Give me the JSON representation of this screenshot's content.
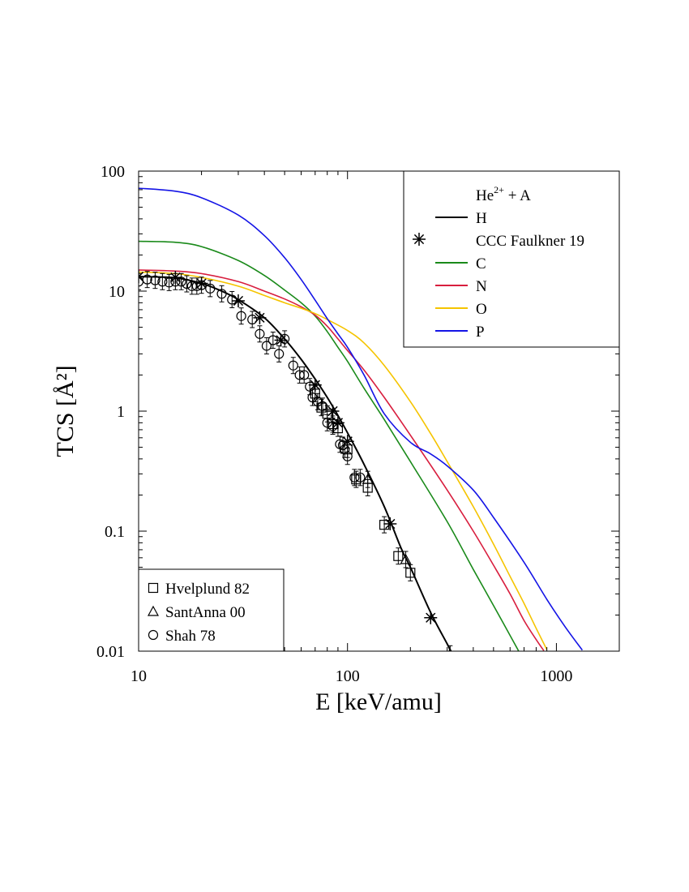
{
  "chart_data": {
    "type": "line",
    "title": "",
    "xlabel": "E [keV/amu]",
    "ylabel": "TCS [Å²]",
    "xscale": "log",
    "yscale": "log",
    "xlim": [
      10,
      2000
    ],
    "ylim": [
      0.01,
      100
    ],
    "xticks": [
      10,
      100,
      1000
    ],
    "xtick_labels": [
      "10",
      "100",
      "1000"
    ],
    "yticks": [
      0.01,
      0.1,
      1,
      10,
      100
    ],
    "ytick_labels": [
      "0.01",
      "0.1",
      "1",
      "10",
      "100"
    ],
    "grid": false,
    "legend_position": "top-right",
    "legend_title": "He2+ + A",
    "legend_title_base": "He",
    "legend_title_sup": "2+",
    "legend_title_rest": " + A",
    "data_legend_position": "bottom-left",
    "series": [
      {
        "name": "H",
        "kind": "line",
        "color": "#000000",
        "x": [
          10,
          15,
          20,
          25,
          30,
          40,
          50,
          60,
          70,
          80,
          90,
          100,
          120,
          150,
          180,
          200,
          250,
          300,
          310
        ],
        "y": [
          13.2,
          12.9,
          11.6,
          10.0,
          8.5,
          6.0,
          4.0,
          2.7,
          1.85,
          1.3,
          0.92,
          0.66,
          0.36,
          0.16,
          0.073,
          0.05,
          0.021,
          0.0115,
          0.0102
        ]
      },
      {
        "name": "CCC Faulkner 19",
        "kind": "marker",
        "marker": "star",
        "color": "#000000",
        "x": [
          10,
          15,
          20,
          30,
          38,
          48,
          70,
          85,
          90,
          100,
          160,
          250
        ],
        "y": [
          13.2,
          13.0,
          11.6,
          8.3,
          6.0,
          3.9,
          1.65,
          1.0,
          0.8,
          0.56,
          0.115,
          0.019
        ]
      },
      {
        "name": "C",
        "kind": "line",
        "color": "#1a8a1a",
        "x": [
          10,
          15,
          20,
          30,
          40,
          50,
          60,
          70,
          80,
          90,
          100,
          120,
          150,
          200,
          300,
          400,
          500,
          650,
          660
        ],
        "y": [
          26,
          25.5,
          23.5,
          18,
          13.5,
          10.2,
          8.0,
          6.2,
          4.6,
          3.4,
          2.6,
          1.55,
          0.85,
          0.38,
          0.12,
          0.048,
          0.024,
          0.0105,
          0.0098
        ]
      },
      {
        "name": "N",
        "kind": "line",
        "color": "#d81e3e",
        "x": [
          10,
          15,
          20,
          30,
          40,
          50,
          60,
          70,
          80,
          90,
          100,
          120,
          150,
          200,
          300,
          400,
          500,
          600,
          700,
          800,
          870
        ],
        "y": [
          15,
          14.7,
          14,
          12,
          10,
          8.6,
          7.4,
          6.3,
          5.1,
          4.0,
          3.2,
          2.2,
          1.3,
          0.63,
          0.22,
          0.1,
          0.052,
          0.03,
          0.018,
          0.0125,
          0.0101
        ]
      },
      {
        "name": "O",
        "kind": "line",
        "color": "#f5c400",
        "x": [
          10,
          15,
          20,
          30,
          40,
          50,
          60,
          70,
          80,
          100,
          120,
          150,
          200,
          250,
          300,
          400,
          500,
          600,
          700,
          800,
          900
        ],
        "y": [
          14.4,
          14.0,
          13.0,
          11.0,
          9.2,
          8.0,
          7.2,
          6.5,
          5.8,
          4.7,
          3.7,
          2.4,
          1.2,
          0.65,
          0.38,
          0.16,
          0.078,
          0.042,
          0.025,
          0.0155,
          0.0103
        ]
      },
      {
        "name": "P",
        "kind": "line",
        "color": "#1414e6",
        "x": [
          10,
          15,
          20,
          30,
          40,
          50,
          60,
          70,
          80,
          90,
          100,
          120,
          150,
          200,
          250,
          300,
          400,
          500,
          700,
          900,
          1100,
          1330
        ],
        "y": [
          72,
          68,
          60,
          43,
          29,
          19,
          12.5,
          8.4,
          5.9,
          4.4,
          3.4,
          2.0,
          0.95,
          0.55,
          0.44,
          0.35,
          0.22,
          0.13,
          0.055,
          0.027,
          0.016,
          0.0102
        ]
      },
      {
        "name": "Hvelplund 82",
        "kind": "marker",
        "marker": "square",
        "color": "#000000",
        "x": [
          70,
          75,
          80,
          85,
          90,
          100,
          110,
          125,
          150,
          175,
          200
        ],
        "y": [
          1.4,
          1.07,
          0.95,
          0.78,
          0.72,
          0.48,
          0.27,
          0.23,
          0.113,
          0.062,
          0.045
        ]
      },
      {
        "name": "SantAnna 00",
        "kind": "marker",
        "marker": "triangle",
        "color": "#000000",
        "x": [
          125,
          190,
          310
        ],
        "y": [
          0.27,
          0.058,
          0.0095
        ]
      },
      {
        "name": "Shah 78",
        "kind": "marker",
        "marker": "circle",
        "color": "#000000",
        "x": [
          10,
          11,
          12,
          13,
          14,
          15,
          16,
          17,
          18,
          19,
          20,
          22,
          25,
          28,
          31,
          35,
          38,
          41,
          44,
          47,
          50,
          55,
          59,
          62,
          66,
          68,
          72,
          76,
          80,
          85,
          92,
          95,
          97,
          100,
          108,
          115
        ],
        "y": [
          12.0,
          12.5,
          12.3,
          12.0,
          11.8,
          12.0,
          12.0,
          11.5,
          11.0,
          11.0,
          11.2,
          10.5,
          9.5,
          8.5,
          6.2,
          5.8,
          4.4,
          3.5,
          3.9,
          3.0,
          4.0,
          2.4,
          2.0,
          2.0,
          1.6,
          1.3,
          1.2,
          1.1,
          0.8,
          0.75,
          0.53,
          0.52,
          0.48,
          0.42,
          0.28,
          0.28
        ]
      }
    ]
  }
}
